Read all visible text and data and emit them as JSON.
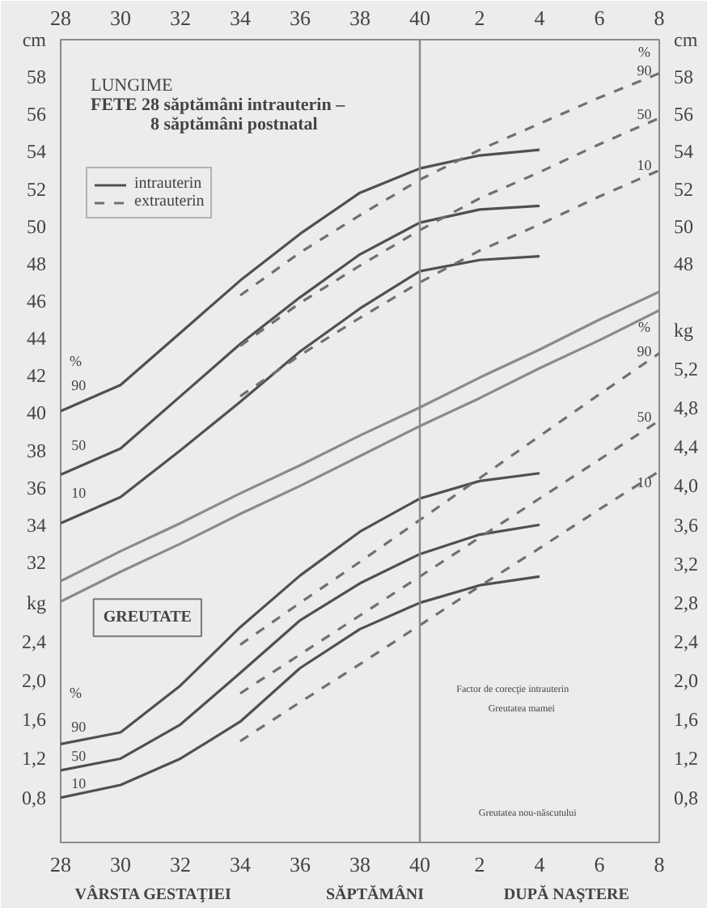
{
  "chart_data": {
    "type": "line",
    "title": "LUNGIME",
    "subtitle": "FETE 28 săptămâni intrauterin – 8 săptămâni postnatal",
    "xlabel": "SĂPTĂMÂNI",
    "ylabel": "cm",
    "y2label": "cm",
    "y3label": "kg",
    "categories": [
      "28",
      "30",
      "32",
      "34",
      "36",
      "38",
      "40",
      "2",
      "4",
      "6",
      "8"
    ],
    "ylim": [
      17,
      60
    ],
    "yticks": [
      32,
      34,
      36,
      38,
      40,
      42,
      44,
      46,
      48,
      50,
      52,
      54,
      56,
      58
    ],
    "y3lim": [
      0.34,
      8.58
    ],
    "y3ticks": [
      {
        "value": 0.8,
        "label": "0,8"
      },
      {
        "value": 1.2,
        "label": "1,2"
      },
      {
        "value": 1.6,
        "label": "1,6"
      },
      {
        "value": 2.0,
        "label": "2,0"
      },
      {
        "value": 2.4,
        "label": "2,4"
      },
      {
        "value": 2.8,
        "label": "2,8"
      },
      {
        "value": 3.2,
        "label": "3,2"
      },
      {
        "value": 3.6,
        "label": "3,6"
      },
      {
        "value": 4.0,
        "label": "4,0"
      },
      {
        "value": 4.4,
        "label": "4,4"
      },
      {
        "value": 4.8,
        "label": "4,8"
      },
      {
        "value": 5.2,
        "label": "5,2"
      }
    ],
    "y2lim": [
      17,
      60
    ],
    "y2ticks": [
      48,
      50,
      52,
      54,
      56,
      58
    ],
    "legend": "top left",
    "series": [
      {
        "name": "intrauterin",
        "color": "#505050",
        "line_style": "solid",
        "values": [
          40.1,
          41.5,
          44.3,
          47.1,
          49.6,
          51.8,
          53.1,
          53.8,
          54.1,
          null,
          null
        ]
      },
      {
        "color": "#505050",
        "line_style": "solid",
        "values": [
          36.7,
          38.1,
          40.9,
          43.7,
          46.2,
          48.5,
          50.2,
          50.9,
          51.1,
          null,
          null
        ]
      },
      {
        "color": "#505050",
        "line_style": "solid",
        "values": [
          34.1,
          35.5,
          38.0,
          40.6,
          43.3,
          45.6,
          47.6,
          48.2,
          48.4,
          null,
          null
        ]
      },
      {
        "name": "extrauterin",
        "color": "#707070",
        "line_style": "dashed",
        "values": [
          null,
          null,
          null,
          46.3,
          48.6,
          50.6,
          52.5,
          54.1,
          55.5,
          56.9,
          58.2
        ]
      },
      {
        "color": "#707070",
        "line_style": "dashed",
        "values": [
          null,
          null,
          null,
          43.6,
          45.9,
          47.9,
          49.8,
          51.5,
          52.9,
          54.4,
          55.8
        ]
      },
      {
        "color": "#707070",
        "line_style": "dashed",
        "values": [
          null,
          null,
          null,
          40.9,
          43.1,
          45.1,
          47.0,
          48.7,
          50.1,
          51.6,
          53.0
        ]
      },
      {
        "color": "#505050",
        "line_style": "solid",
        "axis": "y3",
        "values": [
          1.35,
          1.47,
          1.95,
          2.55,
          3.08,
          3.53,
          3.87,
          4.05,
          4.13,
          null,
          null
        ]
      },
      {
        "color": "#505050",
        "line_style": "solid",
        "axis": "y3",
        "values": [
          1.08,
          1.2,
          1.55,
          2.08,
          2.62,
          3.0,
          3.3,
          3.5,
          3.6,
          null,
          null
        ]
      },
      {
        "color": "#505050",
        "line_style": "solid",
        "axis": "y3",
        "values": [
          0.8,
          0.93,
          1.2,
          1.58,
          2.13,
          2.53,
          2.8,
          2.98,
          3.07,
          null,
          null
        ]
      },
      {
        "color": "#707070",
        "line_style": "dashed",
        "axis": "y3",
        "values": [
          null,
          null,
          null,
          2.37,
          2.8,
          3.22,
          3.65,
          4.08,
          4.51,
          4.94,
          5.36
        ]
      },
      {
        "color": "#707070",
        "line_style": "dashed",
        "axis": "y3",
        "values": [
          null,
          null,
          null,
          1.87,
          2.27,
          2.67,
          3.07,
          3.47,
          3.87,
          4.27,
          4.67
        ]
      },
      {
        "color": "#707070",
        "line_style": "dashed",
        "axis": "y3",
        "values": [
          null,
          null,
          null,
          1.38,
          1.78,
          2.17,
          2.57,
          2.97,
          3.36,
          3.76,
          4.15
        ]
      },
      {
        "color": "#8a8a8a",
        "line_style": "solid",
        "values": [
          31.0,
          32.6,
          34.1,
          35.7,
          37.2,
          38.8,
          40.3,
          41.9,
          43.4,
          45.0,
          46.5
        ]
      },
      {
        "color": "#8a8a8a",
        "line_style": "solid",
        "values": [
          29.9,
          31.5,
          33.0,
          34.6,
          36.1,
          37.7,
          39.3,
          40.8,
          42.4,
          43.9,
          45.5
        ]
      }
    ],
    "ref_lines": [
      {
        "axis": "x",
        "value": "40",
        "color": "#8a8a8a"
      }
    ],
    "annotations": [
      "GREUTATE",
      "VÂRSTA GESTAŢIEI",
      "DUPĂ NAŞTERE",
      "Factor de corecţie intrauterin",
      "Greutatea mamei",
      "Greutatea nou-născutului",
      "%",
      "90",
      "50",
      "10",
      "%",
      "90",
      "50",
      "10",
      "%",
      "90",
      "50",
      "10",
      "%",
      "90",
      "50",
      "10"
    ]
  }
}
